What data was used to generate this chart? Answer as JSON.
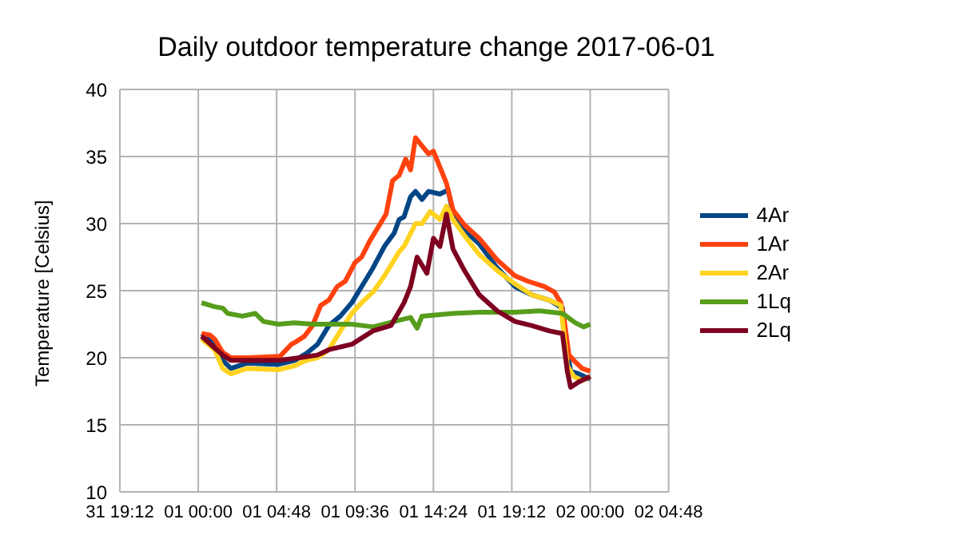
{
  "chart_data": {
    "type": "line",
    "title": "Daily outdoor temperature change 2017-06-01",
    "ylabel": "Temperature [Celsius]",
    "xlim": [
      "2017-05-31T19:12",
      "2017-06-02T04:48"
    ],
    "xticks": [
      {
        "value": "2017-05-31T19:12",
        "label": "31 19:12"
      },
      {
        "value": "2017-06-01T00:00",
        "label": "01 00:00"
      },
      {
        "value": "2017-06-01T04:48",
        "label": "01 04:48"
      },
      {
        "value": "2017-06-01T09:36",
        "label": "01 09:36"
      },
      {
        "value": "2017-06-01T14:24",
        "label": "01 14:24"
      },
      {
        "value": "2017-06-01T19:12",
        "label": "01 19:12"
      },
      {
        "value": "2017-06-02T00:00",
        "label": "02 00:00"
      },
      {
        "value": "2017-06-02T04:48",
        "label": "02 04:48"
      }
    ],
    "ylim": [
      10,
      40
    ],
    "yticks": [
      10,
      15,
      20,
      25,
      30,
      35,
      40
    ],
    "grid": true,
    "legend": "right",
    "marker": "none",
    "line_style": "solid",
    "series": [
      {
        "name": "4Ar",
        "color": "#004586",
        "x": [
          "2017-06-01T00:12",
          "2017-06-01T01:00",
          "2017-06-01T01:30",
          "2017-06-01T02:00",
          "2017-06-01T03:00",
          "2017-06-01T04:54",
          "2017-06-01T05:54",
          "2017-06-01T06:36",
          "2017-06-01T07:18",
          "2017-06-01T08:00",
          "2017-06-01T08:42",
          "2017-06-01T09:24",
          "2017-06-01T10:00",
          "2017-06-01T10:42",
          "2017-06-01T11:24",
          "2017-06-01T12:00",
          "2017-06-01T12:18",
          "2017-06-01T12:36",
          "2017-06-01T13:00",
          "2017-06-01T13:18",
          "2017-06-01T13:42",
          "2017-06-01T14:06",
          "2017-06-01T14:48",
          "2017-06-01T15:18",
          "2017-06-01T15:36",
          "2017-06-01T16:18",
          "2017-06-01T17:12",
          "2017-06-01T18:18",
          "2017-06-01T19:24",
          "2017-06-01T20:24",
          "2017-06-01T21:30",
          "2017-06-01T22:18",
          "2017-06-01T22:36",
          "2017-06-01T22:48",
          "2017-06-01T23:18",
          "2017-06-02T00:00"
        ],
        "values": [
          21.8,
          21.2,
          19.8,
          19.2,
          19.6,
          19.5,
          19.8,
          20.3,
          21,
          22.4,
          23.1,
          24.1,
          25.3,
          26.7,
          28.3,
          29.3,
          30.3,
          30.5,
          32,
          32.4,
          31.8,
          32.4,
          32.2,
          32.5,
          30.8,
          29.5,
          28.5,
          26.7,
          25.3,
          24.7,
          24.3,
          23.7,
          20.5,
          19,
          18.8,
          18.4
        ]
      },
      {
        "name": "1Ar",
        "color": "#ff420e",
        "x": [
          "2017-06-01T00:12",
          "2017-06-01T00:42",
          "2017-06-01T01:00",
          "2017-06-01T01:30",
          "2017-06-01T02:00",
          "2017-06-01T03:00",
          "2017-06-01T05:00",
          "2017-06-01T05:42",
          "2017-06-01T06:00",
          "2017-06-01T06:30",
          "2017-06-01T07:00",
          "2017-06-01T07:30",
          "2017-06-01T08:00",
          "2017-06-01T08:30",
          "2017-06-01T09:00",
          "2017-06-01T09:36",
          "2017-06-01T10:00",
          "2017-06-01T10:30",
          "2017-06-01T11:00",
          "2017-06-01T11:30",
          "2017-06-01T11:54",
          "2017-06-01T12:18",
          "2017-06-01T12:42",
          "2017-06-01T13:00",
          "2017-06-01T13:18",
          "2017-06-01T13:42",
          "2017-06-01T14:06",
          "2017-06-01T14:24",
          "2017-06-01T14:48",
          "2017-06-01T15:12",
          "2017-06-01T15:36",
          "2017-06-01T16:18",
          "2017-06-01T17:12",
          "2017-06-01T18:18",
          "2017-06-01T19:24",
          "2017-06-01T20:12",
          "2017-06-01T21:12",
          "2017-06-01T21:48",
          "2017-06-01T22:12",
          "2017-06-01T22:24",
          "2017-06-01T22:42",
          "2017-06-01T23:00",
          "2017-06-01T23:30",
          "2017-06-02T00:00"
        ],
        "values": [
          21.8,
          21.7,
          21.4,
          20.4,
          20,
          20,
          20.1,
          21,
          21.2,
          21.6,
          22.4,
          23.9,
          24.3,
          25.3,
          25.7,
          27.1,
          27.5,
          28.7,
          29.7,
          30.7,
          33.2,
          33.6,
          34.8,
          34,
          36.4,
          35.8,
          35.2,
          35.4,
          34.2,
          33,
          31,
          29.9,
          28.9,
          27.3,
          26.1,
          25.7,
          25.3,
          24.9,
          24.1,
          22.9,
          20.2,
          19.8,
          19.2,
          19
        ]
      },
      {
        "name": "2Ar",
        "color": "#ffd320",
        "x": [
          "2017-06-01T00:12",
          "2017-06-01T01:00",
          "2017-06-01T01:30",
          "2017-06-01T02:00",
          "2017-06-01T03:00",
          "2017-06-01T04:54",
          "2017-06-01T05:54",
          "2017-06-01T06:36",
          "2017-06-01T07:18",
          "2017-06-01T08:00",
          "2017-06-01T08:42",
          "2017-06-01T09:24",
          "2017-06-01T10:00",
          "2017-06-01T10:42",
          "2017-06-01T11:24",
          "2017-06-01T12:00",
          "2017-06-01T12:18",
          "2017-06-01T12:36",
          "2017-06-01T13:06",
          "2017-06-01T13:18",
          "2017-06-01T13:42",
          "2017-06-01T14:12",
          "2017-06-01T14:48",
          "2017-06-01T15:12",
          "2017-06-01T15:36",
          "2017-06-01T16:18",
          "2017-06-01T17:12",
          "2017-06-01T18:18",
          "2017-06-01T19:24",
          "2017-06-01T20:24",
          "2017-06-01T21:30",
          "2017-06-01T22:12",
          "2017-06-01T22:36",
          "2017-06-01T23:00",
          "2017-06-01T23:30",
          "2017-06-02T00:00"
        ],
        "values": [
          21.4,
          20.6,
          19.2,
          18.8,
          19.2,
          19.1,
          19.4,
          19.8,
          20,
          20.6,
          22,
          23.3,
          24.1,
          24.9,
          26.1,
          27.3,
          27.9,
          28.3,
          29.5,
          30,
          30,
          30.9,
          30.3,
          31.3,
          30.3,
          29.1,
          27.7,
          26.5,
          25.5,
          24.7,
          24.3,
          23.9,
          19.4,
          18.6,
          18.3,
          18.6
        ]
      },
      {
        "name": "1Lq",
        "color": "#579d1c",
        "x": [
          "2017-06-01T00:12",
          "2017-06-01T01:00",
          "2017-06-01T01:30",
          "2017-06-01T01:48",
          "2017-06-01T02:42",
          "2017-06-01T03:30",
          "2017-06-01T04:00",
          "2017-06-01T04:54",
          "2017-06-01T05:54",
          "2017-06-01T07:00",
          "2017-06-01T08:00",
          "2017-06-01T09:24",
          "2017-06-01T10:42",
          "2017-06-01T12:00",
          "2017-06-01T13:00",
          "2017-06-01T13:24",
          "2017-06-01T13:42",
          "2017-06-01T15:36",
          "2017-06-01T17:12",
          "2017-06-01T19:24",
          "2017-06-01T20:54",
          "2017-06-01T22:18",
          "2017-06-01T23:06",
          "2017-06-01T23:36",
          "2017-06-02T00:00"
        ],
        "values": [
          24.1,
          23.8,
          23.7,
          23.3,
          23.1,
          23.3,
          22.7,
          22.5,
          22.6,
          22.5,
          22.5,
          22.5,
          22.3,
          22.7,
          23,
          22.2,
          23.1,
          23.3,
          23.4,
          23.4,
          23.5,
          23.3,
          22.6,
          22.3,
          22.5
        ]
      },
      {
        "name": "2Lq",
        "color": "#7e0021",
        "x": [
          "2017-06-01T00:12",
          "2017-06-01T01:30",
          "2017-06-01T02:00",
          "2017-06-01T04:54",
          "2017-06-01T06:12",
          "2017-06-01T07:18",
          "2017-06-01T08:00",
          "2017-06-01T09:24",
          "2017-06-01T10:42",
          "2017-06-01T11:48",
          "2017-06-01T12:36",
          "2017-06-01T13:00",
          "2017-06-01T13:24",
          "2017-06-01T14:00",
          "2017-06-01T14:24",
          "2017-06-01T14:48",
          "2017-06-01T15:12",
          "2017-06-01T15:36",
          "2017-06-01T16:18",
          "2017-06-01T17:12",
          "2017-06-01T18:18",
          "2017-06-01T19:24",
          "2017-06-01T20:24",
          "2017-06-01T21:30",
          "2017-06-01T22:18",
          "2017-06-01T22:36",
          "2017-06-01T22:48",
          "2017-06-01T23:18",
          "2017-06-02T00:00"
        ],
        "values": [
          21.6,
          20.2,
          19.8,
          19.8,
          20,
          20.2,
          20.6,
          21,
          22,
          22.4,
          24.1,
          25.3,
          27.5,
          26.3,
          28.9,
          28.3,
          30.7,
          28.1,
          26.5,
          24.7,
          23.5,
          22.7,
          22.4,
          22,
          21.8,
          19,
          17.8,
          18.2,
          18.6
        ]
      }
    ]
  }
}
